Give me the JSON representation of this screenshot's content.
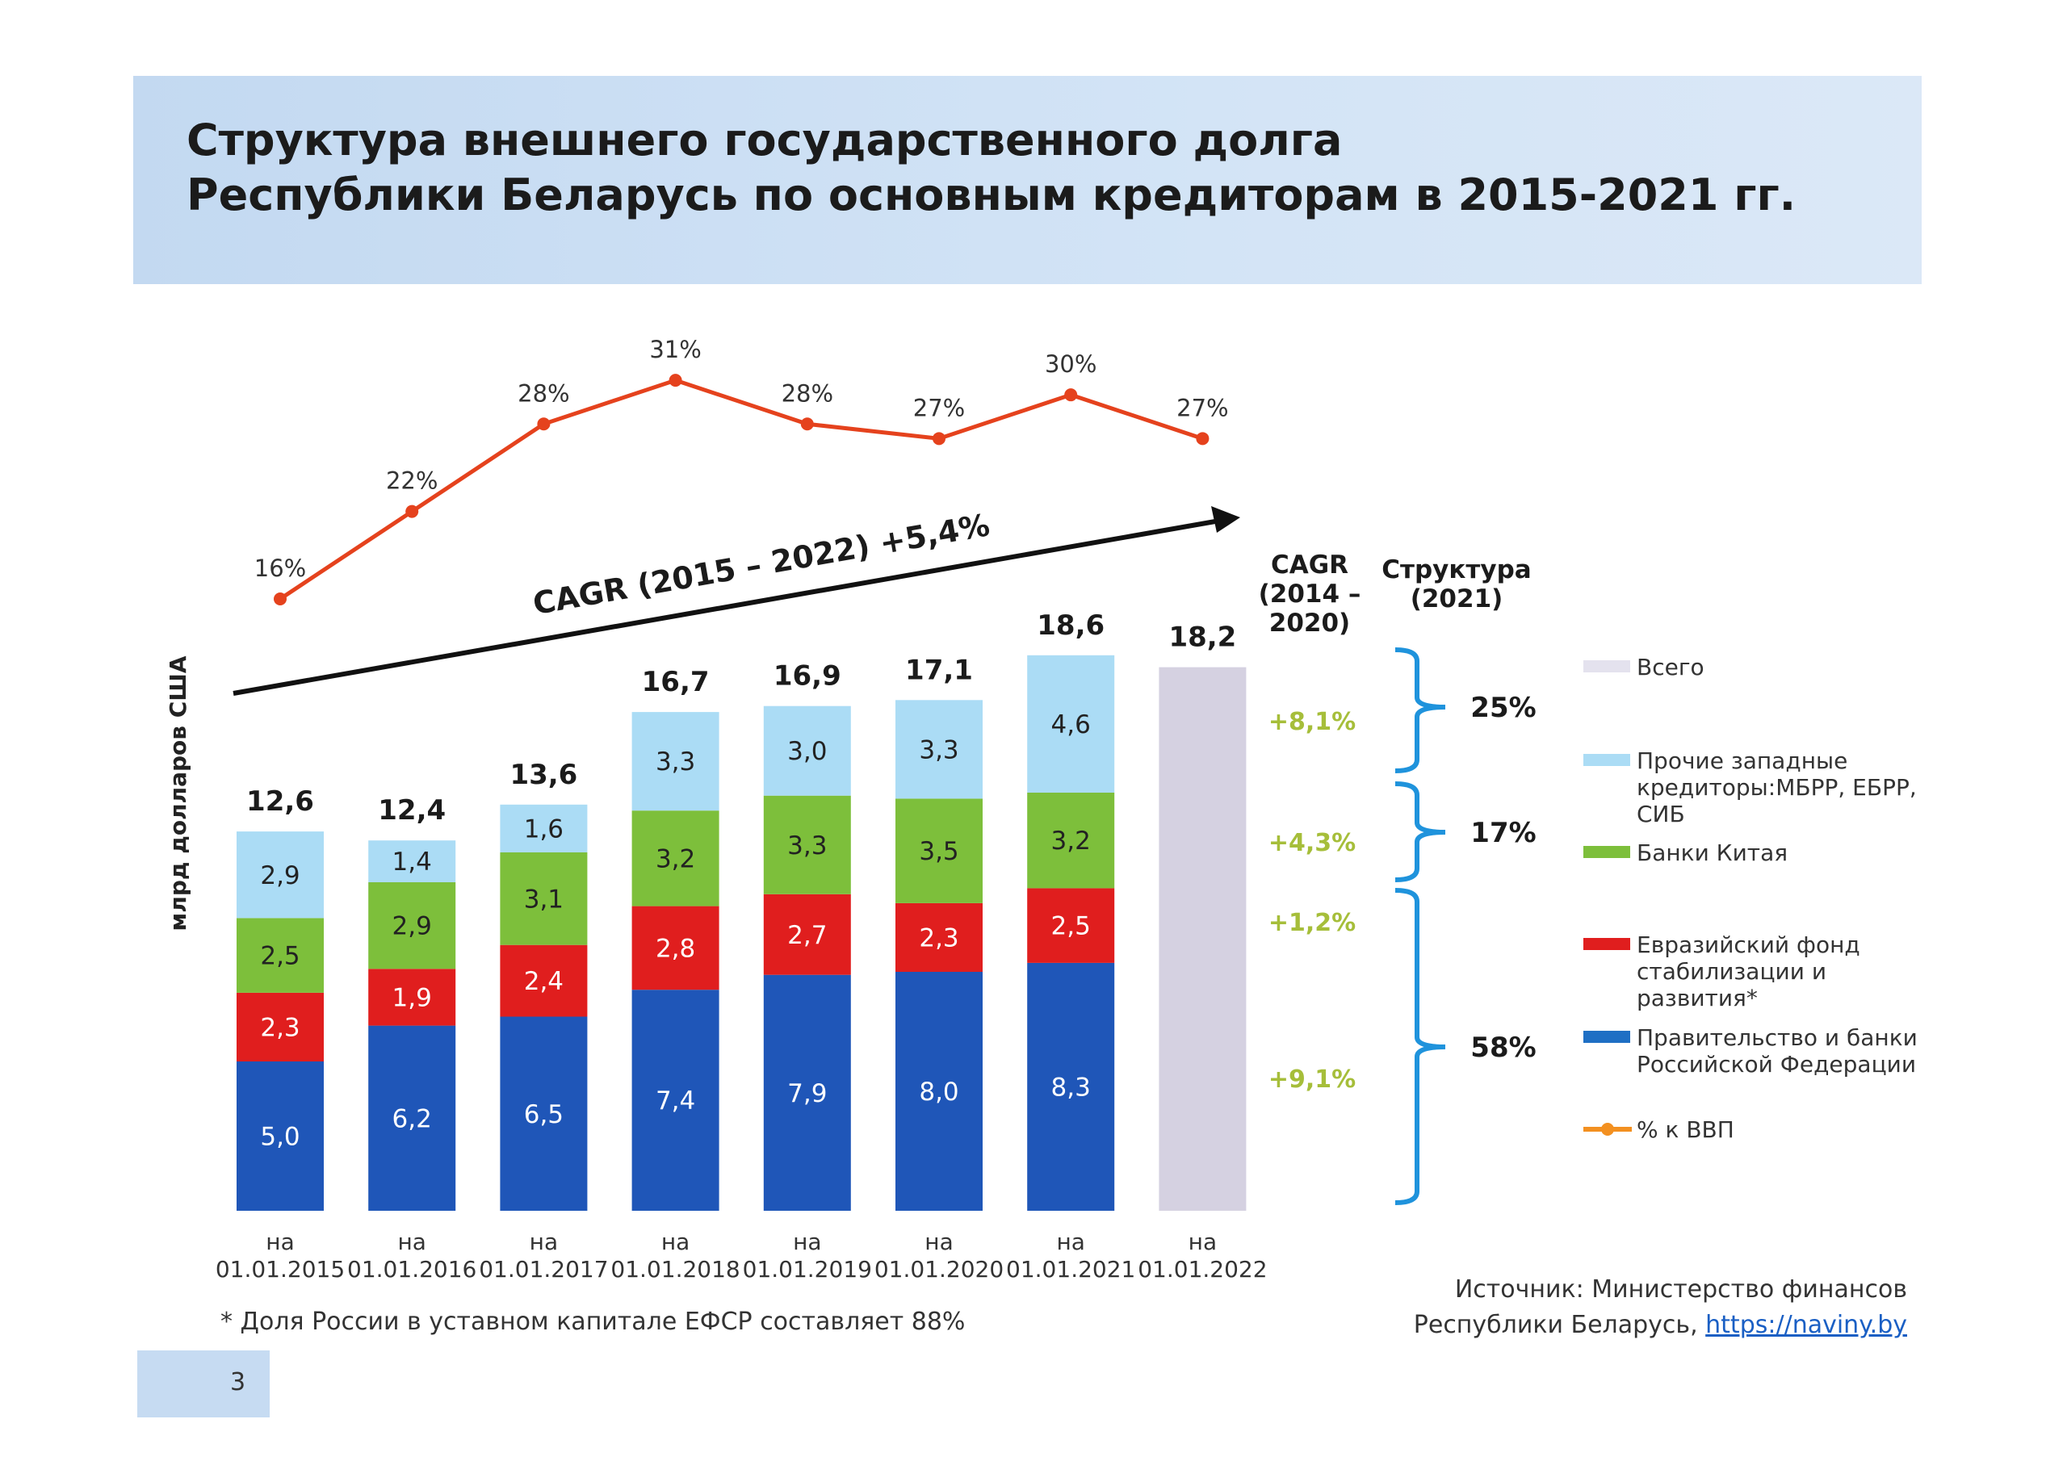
{
  "title": [
    "Структура внешнего государственного долга",
    "Республики Беларусь по основным кредиторам в 2015-2021 гг."
  ],
  "chart_data": {
    "type": "bar",
    "stacked": true,
    "ylabel": "млрд долларов США",
    "x_prefix": "на",
    "categories": [
      "01.01.2015",
      "01.01.2016",
      "01.01.2017",
      "01.01.2018",
      "01.01.2019",
      "01.01.2020",
      "01.01.2021",
      "01.01.2022"
    ],
    "series": [
      {
        "name": "Правительство и банки Российской Федерации",
        "color": "#1f56b8",
        "values": [
          5.0,
          6.2,
          6.5,
          7.4,
          7.9,
          8.0,
          8.3,
          null
        ],
        "labels": [
          "5,0",
          "6,2",
          "6,5",
          "7,4",
          "7,9",
          "8,0",
          "8,3",
          ""
        ]
      },
      {
        "name": "Евразийский фонд стабилизации и развития*",
        "color": "#e01e1e",
        "values": [
          2.3,
          1.9,
          2.4,
          2.8,
          2.7,
          2.3,
          2.5,
          null
        ],
        "labels": [
          "2,3",
          "1,9",
          "2,4",
          "2,8",
          "2,7",
          "2,3",
          "2,5",
          ""
        ]
      },
      {
        "name": "Банки Китая",
        "color": "#7dbf3b",
        "values": [
          2.5,
          2.9,
          3.1,
          3.2,
          3.3,
          3.5,
          3.2,
          null
        ],
        "labels": [
          "2,5",
          "2,9",
          "3,1",
          "3,2",
          "3,3",
          "3,5",
          "3,2",
          ""
        ]
      },
      {
        "name": "Прочие западные кредиторы:МБРР, ЕБРР, СИБ",
        "color": "#abdcf5",
        "values": [
          2.9,
          1.4,
          1.6,
          3.3,
          3.0,
          3.3,
          4.6,
          null
        ],
        "labels": [
          "2,9",
          "1,4",
          "1,6",
          "3,3",
          "3,0",
          "3,3",
          "4,6",
          ""
        ]
      }
    ],
    "totals": {
      "name": "Всего",
      "color": "#d5d1e1",
      "values": [
        12.6,
        12.4,
        13.6,
        16.7,
        16.9,
        17.1,
        18.6,
        18.2
      ],
      "labels": [
        "12,6",
        "12,4",
        "13,6",
        "16,7",
        "16,9",
        "17,1",
        "18,6",
        "18,2"
      ]
    },
    "line": {
      "name": "% к ВВП",
      "color": "#e5421d",
      "values": [
        16,
        22,
        28,
        31,
        28,
        27,
        30,
        27
      ],
      "labels": [
        "16%",
        "22%",
        "28%",
        "31%",
        "28%",
        "27%",
        "30%",
        "27%"
      ]
    },
    "trend_arrow_label": "CAGR (2015 – 2022)  +5,4%",
    "cagr_header": [
      "CAGR",
      "(2014 –",
      "2020)"
    ],
    "cagr_color": "#a6be3a",
    "cagr_values": [
      "+8,1%",
      "+4,3%",
      "+1,2%",
      "+9,1%"
    ],
    "structure_header": [
      "Структура",
      "(2021)"
    ],
    "structure_values": [
      "25%",
      "17%",
      "58%"
    ],
    "bracket_color": "#1f93dc",
    "legend": [
      {
        "lines": [
          "Всего"
        ],
        "color": "#e4e2ee"
      },
      {
        "lines": [
          "Прочие западные",
          "кредиторы:МБРР, ЕБРР,",
          "СИБ"
        ],
        "color": "#abdcf5"
      },
      {
        "lines": [
          "Банки Китая"
        ],
        "color": "#7dbf3b"
      },
      {
        "lines": [
          "Евразийский фонд",
          "стабилизации и",
          "развития*"
        ],
        "color": "#e01e1e"
      },
      {
        "lines": [
          "Правительство и банки",
          "Российской Федерации"
        ],
        "color": "#1f6fc4"
      },
      {
        "lines": [
          "% к ВВП"
        ],
        "color": "#f39020",
        "marker": true
      }
    ]
  },
  "source": {
    "line1": "Источник: Министерство финансов",
    "line2_prefix": "Республики Беларусь, ",
    "link": "https://naviny.by"
  },
  "footnote": "* Доля России в уставном капитале ЕФСР составляет 88%",
  "page_number": "3"
}
